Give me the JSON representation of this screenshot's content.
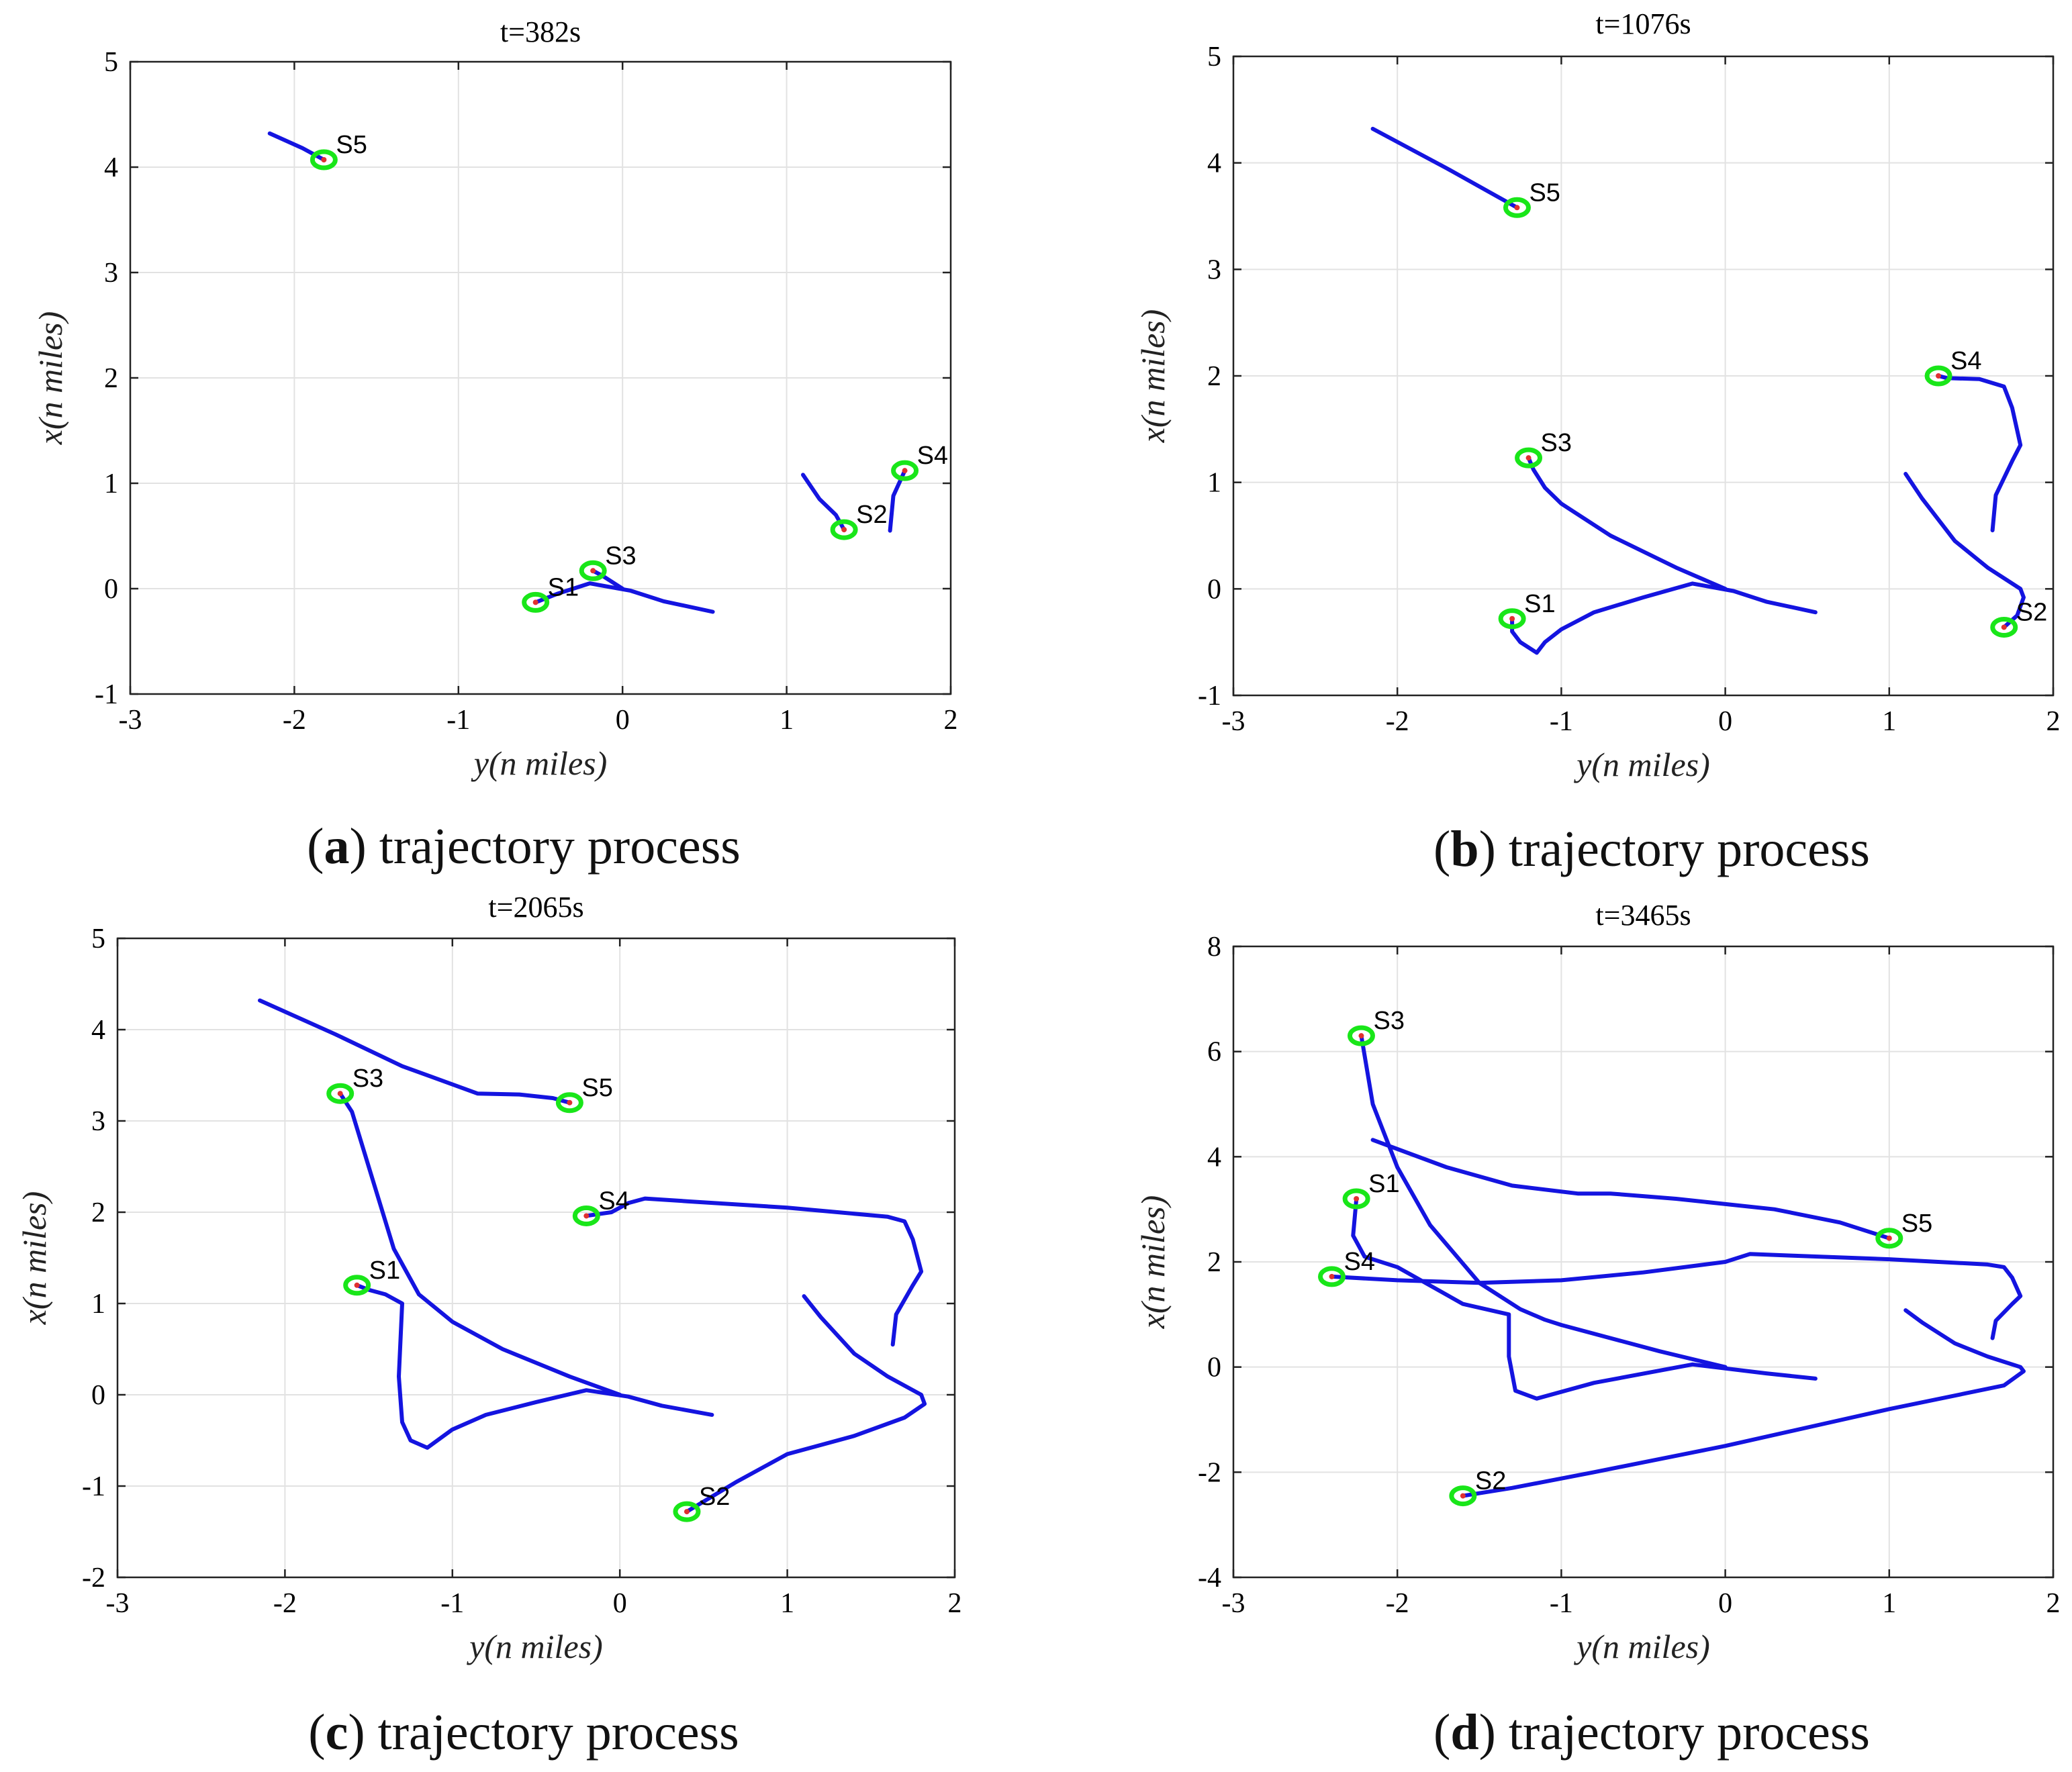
{
  "colors": {
    "trajectory": "#1414e0",
    "marker": "#19e619",
    "center": "#e03030"
  },
  "chart_data": [
    {
      "type": "line",
      "title": "t=382s",
      "xlabel": "y(n miles)",
      "ylabel": "x(n miles)",
      "xlim": [
        -3,
        2
      ],
      "ylim": [
        -1,
        5
      ],
      "xticks": [
        -3,
        -2,
        -1,
        0,
        1,
        2
      ],
      "yticks": [
        -1,
        0,
        1,
        2,
        3,
        4,
        5
      ],
      "grid": true,
      "caption_letter": "a",
      "caption_text": " trajectory process",
      "series": [
        {
          "name": "S1",
          "points": [
            [
              0.55,
              -0.22
            ],
            [
              0.25,
              -0.12
            ],
            [
              0.05,
              -0.02
            ],
            [
              -0.2,
              0.05
            ],
            [
              -0.4,
              -0.05
            ],
            [
              -0.53,
              -0.13
            ]
          ]
        },
        {
          "name": "S2",
          "points": [
            [
              1.1,
              1.08
            ],
            [
              1.2,
              0.85
            ],
            [
              1.3,
              0.7
            ],
            [
              1.35,
              0.56
            ]
          ]
        },
        {
          "name": "S3",
          "points": [
            [
              0.0,
              0.0
            ],
            [
              -0.12,
              0.12
            ],
            [
              -0.18,
              0.17
            ]
          ]
        },
        {
          "name": "S4",
          "points": [
            [
              1.63,
              0.55
            ],
            [
              1.65,
              0.88
            ],
            [
              1.72,
              1.12
            ]
          ]
        },
        {
          "name": "S5",
          "points": [
            [
              -2.15,
              4.32
            ],
            [
              -1.95,
              4.18
            ],
            [
              -1.82,
              4.07
            ]
          ]
        }
      ],
      "ships": [
        {
          "name": "S1",
          "x": -0.53,
          "y": -0.13
        },
        {
          "name": "S2",
          "x": 1.35,
          "y": 0.56
        },
        {
          "name": "S3",
          "x": -0.18,
          "y": 0.17
        },
        {
          "name": "S4",
          "x": 1.72,
          "y": 1.12
        },
        {
          "name": "S5",
          "x": -1.82,
          "y": 4.07
        }
      ]
    },
    {
      "type": "line",
      "title": "t=1076s",
      "xlabel": "y(n miles)",
      "ylabel": "x(n miles)",
      "xlim": [
        -3,
        2
      ],
      "ylim": [
        -1,
        5
      ],
      "xticks": [
        -3,
        -2,
        -1,
        0,
        1,
        2
      ],
      "yticks": [
        -1,
        0,
        1,
        2,
        3,
        4,
        5
      ],
      "grid": true,
      "caption_letter": "b",
      "caption_text": " trajectory process",
      "series": [
        {
          "name": "S1",
          "points": [
            [
              0.55,
              -0.22
            ],
            [
              0.25,
              -0.12
            ],
            [
              0.05,
              -0.02
            ],
            [
              -0.2,
              0.05
            ],
            [
              -0.5,
              -0.08
            ],
            [
              -0.8,
              -0.22
            ],
            [
              -1.0,
              -0.38
            ],
            [
              -1.1,
              -0.5
            ],
            [
              -1.15,
              -0.6
            ],
            [
              -1.25,
              -0.5
            ],
            [
              -1.3,
              -0.4
            ],
            [
              -1.3,
              -0.28
            ]
          ]
        },
        {
          "name": "S2",
          "points": [
            [
              1.1,
              1.08
            ],
            [
              1.2,
              0.85
            ],
            [
              1.4,
              0.45
            ],
            [
              1.6,
              0.2
            ],
            [
              1.8,
              0.0
            ],
            [
              1.82,
              -0.08
            ],
            [
              1.78,
              -0.25
            ],
            [
              1.7,
              -0.36
            ]
          ]
        },
        {
          "name": "S3",
          "points": [
            [
              0.0,
              0.0
            ],
            [
              -0.3,
              0.2
            ],
            [
              -0.7,
              0.5
            ],
            [
              -1.0,
              0.8
            ],
            [
              -1.1,
              0.95
            ],
            [
              -1.17,
              1.12
            ],
            [
              -1.2,
              1.23
            ]
          ]
        },
        {
          "name": "S4",
          "points": [
            [
              1.63,
              0.55
            ],
            [
              1.65,
              0.88
            ],
            [
              1.75,
              1.2
            ],
            [
              1.8,
              1.35
            ],
            [
              1.75,
              1.7
            ],
            [
              1.7,
              1.9
            ],
            [
              1.55,
              1.97
            ],
            [
              1.35,
              1.98
            ],
            [
              1.3,
              2.0
            ]
          ]
        },
        {
          "name": "S5",
          "points": [
            [
              -2.15,
              4.32
            ],
            [
              -1.7,
              3.95
            ],
            [
              -1.27,
              3.58
            ]
          ]
        }
      ],
      "ships": [
        {
          "name": "S1",
          "x": -1.3,
          "y": -0.28
        },
        {
          "name": "S2",
          "x": 1.7,
          "y": -0.36
        },
        {
          "name": "S3",
          "x": -1.2,
          "y": 1.23
        },
        {
          "name": "S4",
          "x": 1.3,
          "y": 2.0
        },
        {
          "name": "S5",
          "x": -1.27,
          "y": 3.58
        }
      ]
    },
    {
      "type": "line",
      "title": "t=2065s",
      "xlabel": "y(n miles)",
      "ylabel": "x(n miles)",
      "xlim": [
        -3,
        2
      ],
      "ylim": [
        -2,
        5
      ],
      "xticks": [
        -3,
        -2,
        -1,
        0,
        1,
        2
      ],
      "yticks": [
        -2,
        -1,
        0,
        1,
        2,
        3,
        4,
        5
      ],
      "grid": true,
      "caption_letter": "c",
      "caption_text": " trajectory process",
      "series": [
        {
          "name": "S1",
          "points": [
            [
              0.55,
              -0.22
            ],
            [
              0.25,
              -0.12
            ],
            [
              0.05,
              -0.02
            ],
            [
              -0.2,
              0.05
            ],
            [
              -0.5,
              -0.08
            ],
            [
              -0.8,
              -0.22
            ],
            [
              -1.0,
              -0.38
            ],
            [
              -1.15,
              -0.58
            ],
            [
              -1.25,
              -0.5
            ],
            [
              -1.3,
              -0.3
            ],
            [
              -1.32,
              0.2
            ],
            [
              -1.3,
              1.0
            ],
            [
              -1.4,
              1.1
            ],
            [
              -1.5,
              1.15
            ],
            [
              -1.57,
              1.2
            ]
          ]
        },
        {
          "name": "S2",
          "points": [
            [
              1.1,
              1.08
            ],
            [
              1.2,
              0.85
            ],
            [
              1.4,
              0.45
            ],
            [
              1.6,
              0.2
            ],
            [
              1.8,
              0.0
            ],
            [
              1.82,
              -0.1
            ],
            [
              1.7,
              -0.25
            ],
            [
              1.4,
              -0.45
            ],
            [
              1.0,
              -0.65
            ],
            [
              0.7,
              -0.95
            ],
            [
              0.4,
              -1.28
            ]
          ]
        },
        {
          "name": "S3",
          "points": [
            [
              0.0,
              0.0
            ],
            [
              -0.3,
              0.2
            ],
            [
              -0.7,
              0.5
            ],
            [
              -1.0,
              0.8
            ],
            [
              -1.1,
              0.95
            ],
            [
              -1.2,
              1.1
            ],
            [
              -1.35,
              1.6
            ],
            [
              -1.5,
              2.5
            ],
            [
              -1.6,
              3.1
            ],
            [
              -1.67,
              3.3
            ]
          ]
        },
        {
          "name": "S4",
          "points": [
            [
              1.63,
              0.55
            ],
            [
              1.65,
              0.88
            ],
            [
              1.75,
              1.2
            ],
            [
              1.8,
              1.35
            ],
            [
              1.75,
              1.7
            ],
            [
              1.7,
              1.9
            ],
            [
              1.6,
              1.95
            ],
            [
              1.0,
              2.05
            ],
            [
              0.4,
              2.12
            ],
            [
              0.15,
              2.15
            ],
            [
              0.05,
              2.1
            ],
            [
              -0.05,
              2.0
            ],
            [
              -0.2,
              1.96
            ]
          ]
        },
        {
          "name": "S5",
          "points": [
            [
              -2.15,
              4.32
            ],
            [
              -1.7,
              3.95
            ],
            [
              -1.3,
              3.6
            ],
            [
              -1.0,
              3.4
            ],
            [
              -0.85,
              3.3
            ],
            [
              -0.6,
              3.29
            ],
            [
              -0.4,
              3.25
            ],
            [
              -0.3,
              3.2
            ]
          ]
        }
      ],
      "ships": [
        {
          "name": "S1",
          "x": -1.57,
          "y": 1.2
        },
        {
          "name": "S2",
          "x": 0.4,
          "y": -1.28
        },
        {
          "name": "S3",
          "x": -1.67,
          "y": 3.3
        },
        {
          "name": "S4",
          "x": -0.2,
          "y": 1.96
        },
        {
          "name": "S5",
          "x": -0.3,
          "y": 3.2
        }
      ]
    },
    {
      "type": "line",
      "title": "t=3465s",
      "xlabel": "y(n miles)",
      "ylabel": "x(n miles)",
      "xlim": [
        -3,
        2
      ],
      "ylim": [
        -4,
        8
      ],
      "xticks": [
        -3,
        -2,
        -1,
        0,
        1,
        2
      ],
      "yticks": [
        -4,
        -2,
        0,
        2,
        4,
        6,
        8
      ],
      "grid": true,
      "caption_letter": "d",
      "caption_text": " trajectory process",
      "series": [
        {
          "name": "S1",
          "points": [
            [
              0.55,
              -0.22
            ],
            [
              0.25,
              -0.12
            ],
            [
              -0.2,
              0.05
            ],
            [
              -0.8,
              -0.3
            ],
            [
              -1.15,
              -0.6
            ],
            [
              -1.28,
              -0.45
            ],
            [
              -1.32,
              0.2
            ],
            [
              -1.32,
              1.0
            ],
            [
              -1.6,
              1.2
            ],
            [
              -2.0,
              1.9
            ],
            [
              -2.2,
              2.1
            ],
            [
              -2.27,
              2.5
            ],
            [
              -2.25,
              3.2
            ]
          ]
        },
        {
          "name": "S2",
          "points": [
            [
              1.1,
              1.08
            ],
            [
              1.2,
              0.85
            ],
            [
              1.4,
              0.45
            ],
            [
              1.6,
              0.2
            ],
            [
              1.8,
              0.0
            ],
            [
              1.82,
              -0.08
            ],
            [
              1.7,
              -0.35
            ],
            [
              1.0,
              -0.8
            ],
            [
              0.0,
              -1.5
            ],
            [
              -0.8,
              -2.0
            ],
            [
              -1.3,
              -2.3
            ],
            [
              -1.6,
              -2.45
            ]
          ]
        },
        {
          "name": "S3",
          "points": [
            [
              0.0,
              0.0
            ],
            [
              -0.4,
              0.3
            ],
            [
              -1.0,
              0.8
            ],
            [
              -1.1,
              0.9
            ],
            [
              -1.25,
              1.1
            ],
            [
              -1.5,
              1.6
            ],
            [
              -1.8,
              2.7
            ],
            [
              -2.0,
              3.8
            ],
            [
              -2.15,
              5.0
            ],
            [
              -2.22,
              6.3
            ]
          ]
        },
        {
          "name": "S4",
          "points": [
            [
              1.63,
              0.55
            ],
            [
              1.65,
              0.88
            ],
            [
              1.75,
              1.2
            ],
            [
              1.8,
              1.35
            ],
            [
              1.75,
              1.7
            ],
            [
              1.7,
              1.9
            ],
            [
              1.6,
              1.95
            ],
            [
              1.0,
              2.05
            ],
            [
              0.4,
              2.12
            ],
            [
              0.15,
              2.15
            ],
            [
              0.0,
              2.0
            ],
            [
              -0.5,
              1.8
            ],
            [
              -1.0,
              1.65
            ],
            [
              -1.5,
              1.6
            ],
            [
              -2.0,
              1.65
            ],
            [
              -2.4,
              1.72
            ]
          ]
        },
        {
          "name": "S5",
          "points": [
            [
              -2.15,
              4.32
            ],
            [
              -1.7,
              3.8
            ],
            [
              -1.3,
              3.45
            ],
            [
              -0.9,
              3.3
            ],
            [
              -0.7,
              3.3
            ],
            [
              -0.3,
              3.2
            ],
            [
              0.3,
              3.0
            ],
            [
              0.7,
              2.75
            ],
            [
              1.0,
              2.45
            ]
          ]
        }
      ],
      "ships": [
        {
          "name": "S1",
          "x": -2.25,
          "y": 3.2
        },
        {
          "name": "S2",
          "x": -1.6,
          "y": -2.45
        },
        {
          "name": "S3",
          "x": -2.22,
          "y": 6.3
        },
        {
          "name": "S4",
          "x": -2.4,
          "y": 1.72
        },
        {
          "name": "S5",
          "x": 1.0,
          "y": 2.45
        }
      ]
    }
  ]
}
